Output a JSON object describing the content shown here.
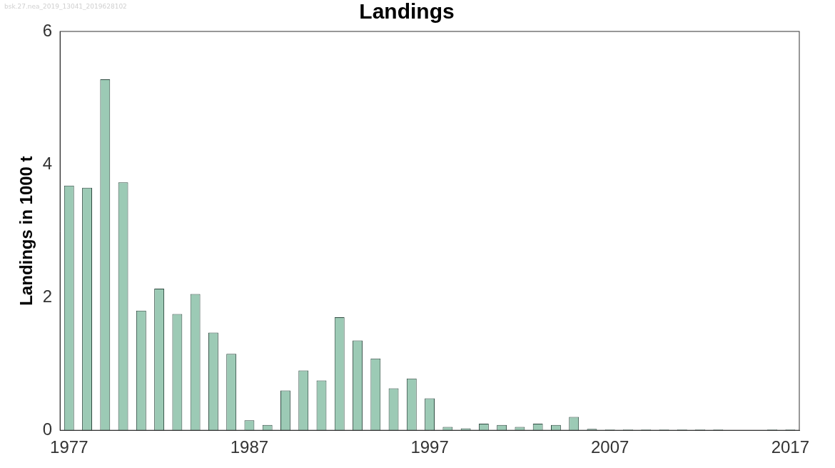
{
  "chart_data": {
    "type": "bar",
    "title": "Landings",
    "y_label": "Landings in 1000 t",
    "annotation": "bsk.27.nea_2019_13041_2019628102",
    "categories": [
      "1977",
      null,
      null,
      null,
      null,
      null,
      null,
      null,
      null,
      null,
      "1987",
      null,
      null,
      null,
      null,
      null,
      null,
      null,
      null,
      null,
      "1997",
      null,
      null,
      null,
      null,
      null,
      null,
      null,
      null,
      null,
      "2007",
      null,
      null,
      null,
      null,
      null,
      null,
      null,
      null,
      null,
      "2017"
    ],
    "values": [
      3.68,
      3.65,
      5.28,
      3.73,
      1.8,
      2.13,
      1.75,
      2.05,
      1.47,
      1.15,
      0.15,
      0.08,
      0.6,
      0.9,
      0.75,
      1.7,
      1.35,
      1.08,
      0.63,
      0.78,
      0.48,
      0.05,
      0.03,
      0.1,
      0.08,
      0.05,
      0.1,
      0.08,
      0.2,
      0.02,
      0.01,
      0.01,
      0.01,
      0.01,
      0.01,
      0.01,
      0.01,
      0,
      0,
      0.01,
      0.01
    ],
    "color": "#9ccab5",
    "ylim": [
      0,
      6
    ],
    "yticks": [
      0,
      2,
      4,
      6
    ],
    "grid": false
  }
}
